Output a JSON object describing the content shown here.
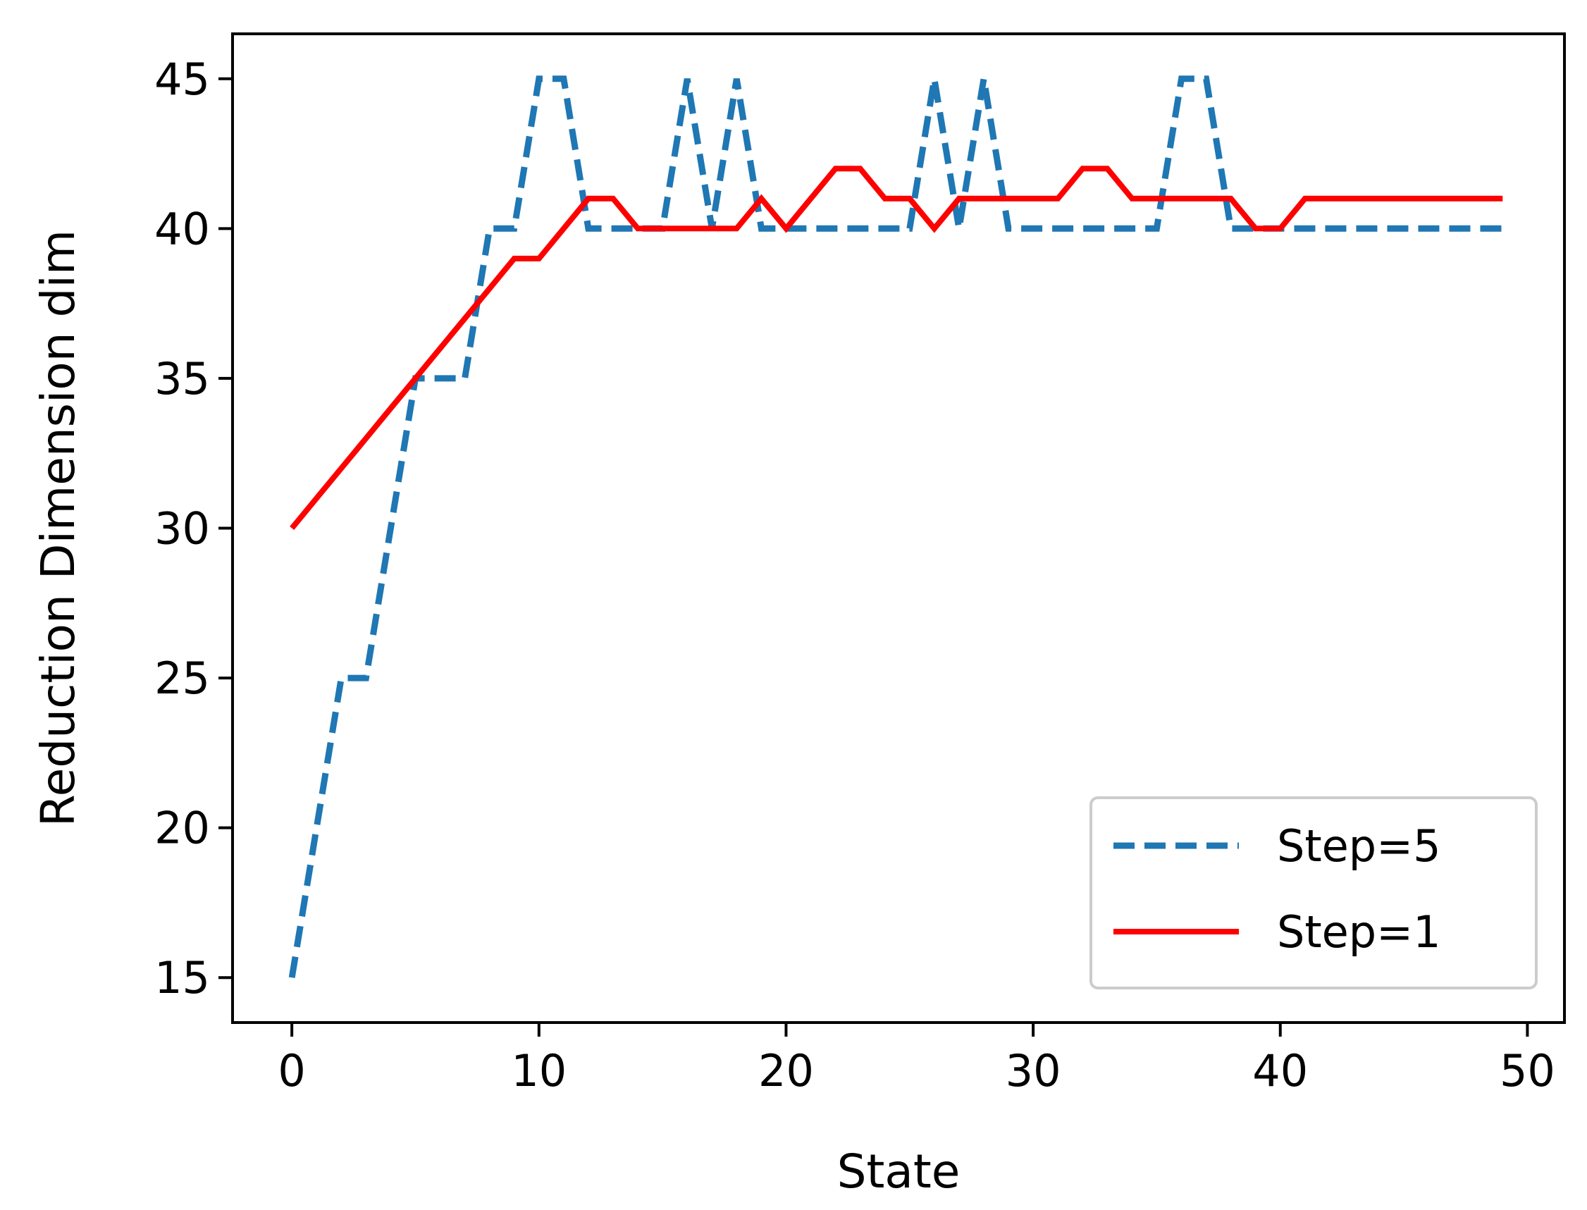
{
  "chart_data": {
    "type": "line",
    "title": "",
    "xlabel": "State",
    "ylabel": "Reduction Dimension dim",
    "xlim": [
      -2.4,
      51.5
    ],
    "ylim": [
      13.5,
      46.5
    ],
    "xticks": [
      0,
      10,
      20,
      30,
      40,
      50
    ],
    "yticks": [
      15,
      20,
      25,
      30,
      35,
      40,
      45
    ],
    "grid": false,
    "legend_position": "lower-right",
    "x": [
      0,
      1,
      2,
      3,
      4,
      5,
      6,
      7,
      8,
      9,
      10,
      11,
      12,
      13,
      14,
      15,
      16,
      17,
      18,
      19,
      20,
      21,
      22,
      23,
      24,
      25,
      26,
      27,
      28,
      29,
      30,
      31,
      32,
      33,
      34,
      35,
      36,
      37,
      38,
      39,
      40,
      41,
      42,
      43,
      44,
      45,
      46,
      47,
      48,
      49
    ],
    "series": [
      {
        "name": "Step=5",
        "color": "#1f77b4",
        "line_style": "dashed",
        "values": [
          15,
          20,
          25,
          25,
          30,
          35,
          35,
          35,
          40,
          40,
          45,
          45,
          40,
          40,
          40,
          40,
          45,
          40,
          45,
          40,
          40,
          40,
          40,
          40,
          40,
          40,
          45,
          40,
          45,
          40,
          40,
          40,
          40,
          40,
          40,
          40,
          45,
          45,
          40,
          40,
          40,
          40,
          40,
          40,
          40,
          40,
          40,
          40,
          40,
          40
        ]
      },
      {
        "name": "Step=1",
        "color": "#ff0000",
        "line_style": "solid",
        "values": [
          30,
          31,
          32,
          33,
          34,
          35,
          36,
          37,
          38,
          39,
          39,
          40,
          41,
          41,
          40,
          40,
          40,
          40,
          40,
          41,
          40,
          41,
          42,
          42,
          41,
          41,
          40,
          41,
          41,
          41,
          41,
          41,
          42,
          42,
          41,
          41,
          41,
          41,
          41,
          40,
          40,
          41,
          41,
          41,
          41,
          41,
          41,
          41,
          41,
          41
        ]
      }
    ]
  }
}
